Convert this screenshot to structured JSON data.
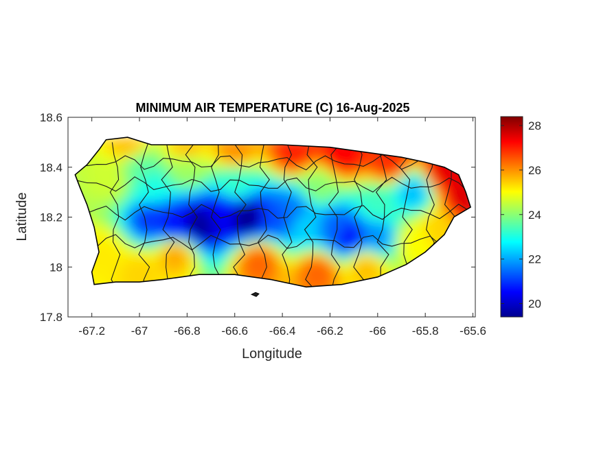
{
  "chart_data": {
    "type": "heatmap",
    "title": "MINIMUM AIR TEMPERATURE (C) 16-Aug-2025",
    "xlabel": "Longitude",
    "ylabel": "Latitude",
    "xlim": [
      -67.3,
      -65.59
    ],
    "ylim": [
      17.8,
      18.6
    ],
    "x_ticks": [
      {
        "value": -67.2,
        "label": "-67.2"
      },
      {
        "value": -67.0,
        "label": "-67"
      },
      {
        "value": -66.8,
        "label": "-66.8"
      },
      {
        "value": -66.6,
        "label": "-66.6"
      },
      {
        "value": -66.4,
        "label": "-66.4"
      },
      {
        "value": -66.2,
        "label": "-66.2"
      },
      {
        "value": -66.0,
        "label": "-66"
      },
      {
        "value": -65.8,
        "label": "-65.8"
      },
      {
        "value": -65.6,
        "label": "-65.6"
      }
    ],
    "y_ticks": [
      {
        "value": 17.8,
        "label": "17.8"
      },
      {
        "value": 18.0,
        "label": "18"
      },
      {
        "value": 18.2,
        "label": "18.2"
      },
      {
        "value": 18.4,
        "label": "18.4"
      },
      {
        "value": 18.6,
        "label": "18.6"
      }
    ],
    "colorbar": {
      "colormap": "jet",
      "range": [
        19.4,
        28.4
      ],
      "ticks": [
        {
          "value": 20,
          "label": "20"
        },
        {
          "value": 22,
          "label": "22"
        },
        {
          "value": 24,
          "label": "24"
        },
        {
          "value": 26,
          "label": "26"
        },
        {
          "value": 28,
          "label": "28"
        }
      ]
    },
    "island_outline": [
      [
        -67.27,
        18.37
      ],
      [
        -67.22,
        18.41
      ],
      [
        -67.17,
        18.47
      ],
      [
        -67.14,
        18.51
      ],
      [
        -67.05,
        18.52
      ],
      [
        -66.95,
        18.49
      ],
      [
        -66.8,
        18.49
      ],
      [
        -66.6,
        18.49
      ],
      [
        -66.4,
        18.49
      ],
      [
        -66.2,
        18.48
      ],
      [
        -66.05,
        18.46
      ],
      [
        -65.9,
        18.44
      ],
      [
        -65.8,
        18.42
      ],
      [
        -65.72,
        18.4
      ],
      [
        -65.66,
        18.37
      ],
      [
        -65.63,
        18.3
      ],
      [
        -65.61,
        18.24
      ],
      [
        -65.68,
        18.2
      ],
      [
        -65.72,
        18.13
      ],
      [
        -65.8,
        18.06
      ],
      [
        -65.88,
        18.01
      ],
      [
        -66.0,
        17.96
      ],
      [
        -66.15,
        17.93
      ],
      [
        -66.3,
        17.92
      ],
      [
        -66.45,
        17.95
      ],
      [
        -66.6,
        17.97
      ],
      [
        -66.75,
        17.97
      ],
      [
        -66.9,
        17.95
      ],
      [
        -67.0,
        17.94
      ],
      [
        -67.1,
        17.94
      ],
      [
        -67.19,
        17.93
      ],
      [
        -67.2,
        17.98
      ],
      [
        -67.17,
        18.06
      ],
      [
        -67.19,
        18.16
      ],
      [
        -67.22,
        18.25
      ],
      [
        -67.25,
        18.32
      ]
    ],
    "temperature_field_points": [
      [
        -66.75,
        18.17,
        19.6
      ],
      [
        -66.55,
        18.2,
        19.5
      ],
      [
        -66.65,
        18.22,
        20.5
      ],
      [
        -66.85,
        18.17,
        20.6
      ],
      [
        -66.95,
        18.19,
        21.0
      ],
      [
        -66.35,
        18.23,
        21.6
      ],
      [
        -66.42,
        18.2,
        21.2
      ],
      [
        -66.12,
        18.12,
        20.6
      ],
      [
        -66.18,
        18.16,
        21.4
      ],
      [
        -66.0,
        18.12,
        21.8
      ],
      [
        -66.3,
        18.17,
        22.4
      ],
      [
        -65.85,
        18.3,
        22.2
      ],
      [
        -66.95,
        18.32,
        23.0
      ],
      [
        -67.0,
        18.4,
        23.6
      ],
      [
        -66.6,
        18.33,
        23.2
      ],
      [
        -66.25,
        18.32,
        24.0
      ],
      [
        -67.12,
        18.35,
        24.6
      ],
      [
        -66.8,
        18.4,
        24.2
      ],
      [
        -66.0,
        18.25,
        23.3
      ],
      [
        -66.85,
        18.05,
        25.8
      ],
      [
        -66.5,
        18.02,
        26.4
      ],
      [
        -66.25,
        17.98,
        26.4
      ],
      [
        -66.05,
        18.0,
        25.6
      ],
      [
        -67.15,
        18.05,
        25.2
      ],
      [
        -67.0,
        17.98,
        25.4
      ],
      [
        -65.75,
        18.15,
        25.4
      ],
      [
        -65.85,
        18.1,
        25.0
      ],
      [
        -66.6,
        18.47,
        26.0
      ],
      [
        -66.35,
        18.46,
        27.0
      ],
      [
        -66.15,
        18.45,
        27.3
      ],
      [
        -65.95,
        18.42,
        26.9
      ],
      [
        -65.72,
        18.38,
        27.5
      ],
      [
        -65.63,
        18.28,
        27.6
      ],
      [
        -67.05,
        18.49,
        25.6
      ],
      [
        -66.8,
        18.48,
        25.6
      ]
    ]
  }
}
